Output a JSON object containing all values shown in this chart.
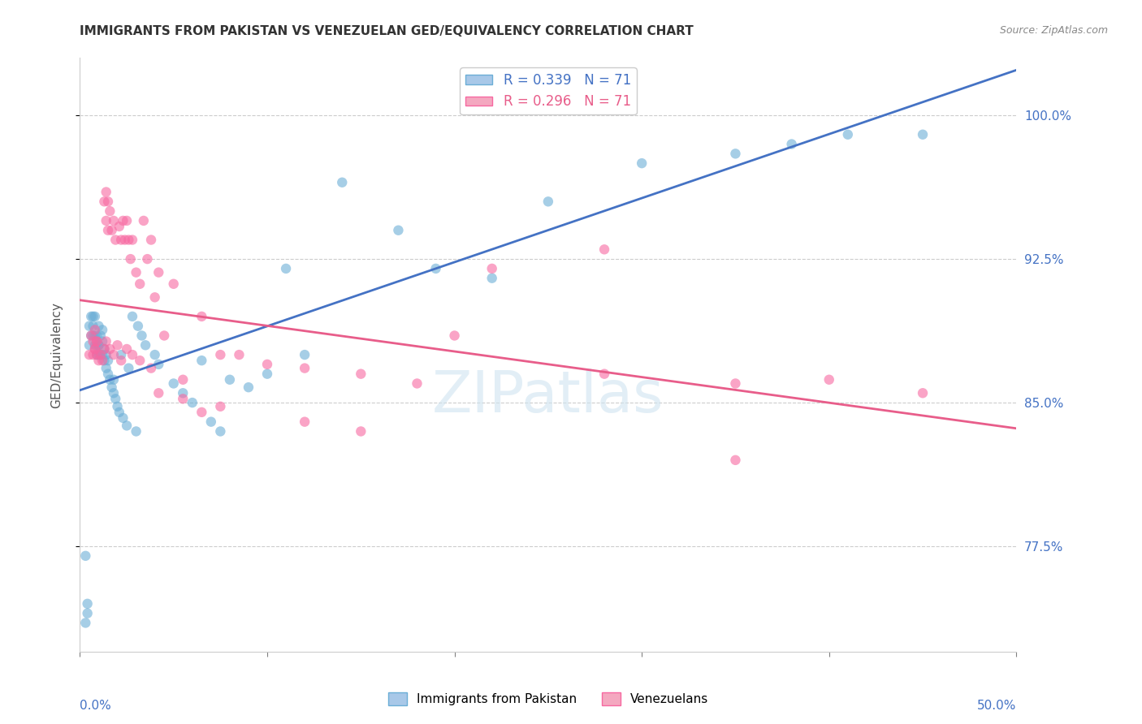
{
  "title": "IMMIGRANTS FROM PAKISTAN VS VENEZUELAN GED/EQUIVALENCY CORRELATION CHART",
  "source": "Source: ZipAtlas.com",
  "ylabel": "GED/Equivalency",
  "ytick_labels": [
    "77.5%",
    "85.0%",
    "92.5%",
    "100.0%"
  ],
  "ytick_values": [
    0.775,
    0.85,
    0.925,
    1.0
  ],
  "xmin": 0.0,
  "xmax": 0.5,
  "ymin": 0.72,
  "ymax": 1.03,
  "blue_color": "#6baed6",
  "pink_color": "#f768a1",
  "line_blue": "#4472c4",
  "line_pink": "#e85d8a",
  "axis_color": "#4472c4",
  "grid_color": "#cccccc",
  "pakistan_x": [
    0.005,
    0.005,
    0.006,
    0.006,
    0.007,
    0.007,
    0.007,
    0.008,
    0.008,
    0.008,
    0.009,
    0.009,
    0.009,
    0.01,
    0.01,
    0.01,
    0.01,
    0.011,
    0.011,
    0.012,
    0.012,
    0.012,
    0.013,
    0.013,
    0.014,
    0.014,
    0.015,
    0.015,
    0.016,
    0.017,
    0.018,
    0.018,
    0.019,
    0.02,
    0.021,
    0.022,
    0.023,
    0.025,
    0.026,
    0.028,
    0.03,
    0.031,
    0.033,
    0.035,
    0.04,
    0.042,
    0.05,
    0.055,
    0.06,
    0.065,
    0.07,
    0.075,
    0.08,
    0.09,
    0.1,
    0.11,
    0.12,
    0.14,
    0.17,
    0.19,
    0.22,
    0.25,
    0.3,
    0.35,
    0.38,
    0.41,
    0.45,
    0.003,
    0.004,
    0.004,
    0.003
  ],
  "pakistan_y": [
    0.88,
    0.89,
    0.885,
    0.895,
    0.885,
    0.89,
    0.895,
    0.88,
    0.885,
    0.895,
    0.875,
    0.88,
    0.885,
    0.875,
    0.88,
    0.88,
    0.89,
    0.875,
    0.885,
    0.875,
    0.882,
    0.888,
    0.872,
    0.878,
    0.868,
    0.875,
    0.865,
    0.872,
    0.862,
    0.858,
    0.855,
    0.862,
    0.852,
    0.848,
    0.845,
    0.875,
    0.842,
    0.838,
    0.868,
    0.895,
    0.835,
    0.89,
    0.885,
    0.88,
    0.875,
    0.87,
    0.86,
    0.855,
    0.85,
    0.872,
    0.84,
    0.835,
    0.862,
    0.858,
    0.865,
    0.92,
    0.875,
    0.965,
    0.94,
    0.92,
    0.915,
    0.955,
    0.975,
    0.98,
    0.985,
    0.99,
    0.99,
    0.735,
    0.745,
    0.74,
    0.77
  ],
  "venezuela_x": [
    0.005,
    0.006,
    0.007,
    0.008,
    0.008,
    0.009,
    0.009,
    0.01,
    0.011,
    0.012,
    0.013,
    0.014,
    0.014,
    0.015,
    0.015,
    0.016,
    0.017,
    0.018,
    0.019,
    0.02,
    0.021,
    0.022,
    0.023,
    0.024,
    0.025,
    0.026,
    0.027,
    0.028,
    0.03,
    0.032,
    0.034,
    0.036,
    0.038,
    0.04,
    0.042,
    0.045,
    0.05,
    0.055,
    0.065,
    0.075,
    0.085,
    0.1,
    0.12,
    0.15,
    0.18,
    0.22,
    0.28,
    0.35,
    0.4,
    0.45,
    0.007,
    0.008,
    0.009,
    0.013,
    0.014,
    0.016,
    0.018,
    0.022,
    0.025,
    0.028,
    0.032,
    0.038,
    0.042,
    0.055,
    0.065,
    0.075,
    0.12,
    0.15,
    0.2,
    0.28,
    0.35
  ],
  "venezuela_y": [
    0.875,
    0.885,
    0.882,
    0.878,
    0.888,
    0.875,
    0.882,
    0.872,
    0.875,
    0.872,
    0.955,
    0.945,
    0.96,
    0.955,
    0.94,
    0.95,
    0.94,
    0.945,
    0.935,
    0.88,
    0.942,
    0.935,
    0.945,
    0.935,
    0.945,
    0.935,
    0.925,
    0.935,
    0.918,
    0.912,
    0.945,
    0.925,
    0.935,
    0.905,
    0.918,
    0.885,
    0.912,
    0.862,
    0.895,
    0.875,
    0.875,
    0.87,
    0.868,
    0.865,
    0.86,
    0.92,
    0.93,
    0.86,
    0.862,
    0.855,
    0.875,
    0.878,
    0.882,
    0.878,
    0.882,
    0.878,
    0.875,
    0.872,
    0.878,
    0.875,
    0.872,
    0.868,
    0.855,
    0.852,
    0.845,
    0.848,
    0.84,
    0.835,
    0.885,
    0.865,
    0.82
  ]
}
